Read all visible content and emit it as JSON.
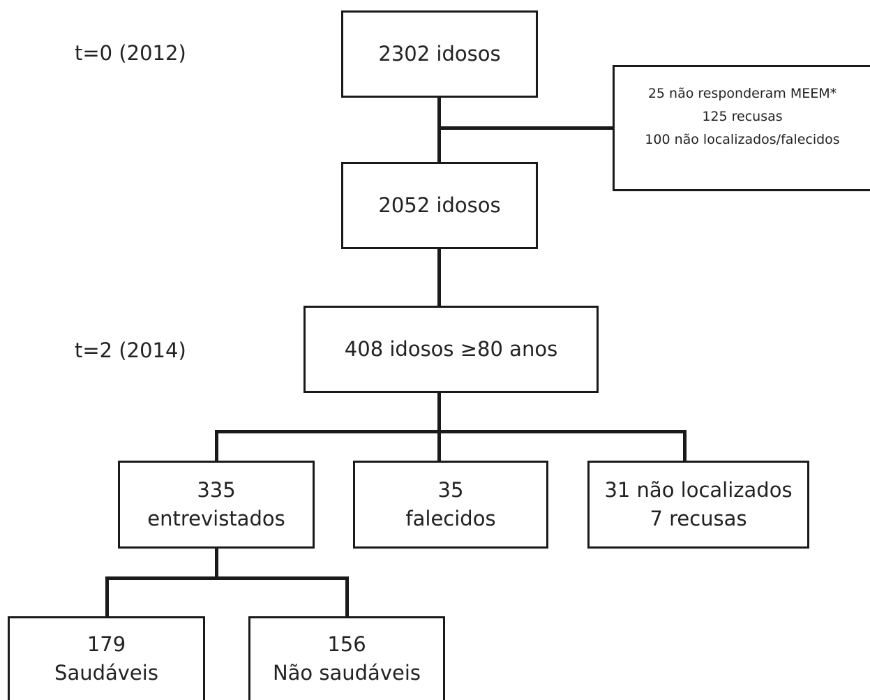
{
  "time_labels": {
    "t0": "t=0 (2012)",
    "t2": "t=2 (2014)"
  },
  "boxes": {
    "baseline": "2302 idosos",
    "exclusions": {
      "line1": "25 não responderam  MEEM*",
      "line2": "125 recusas",
      "line3": "100 não localizados/falecidos"
    },
    "after_exclusion": "2052 idosos",
    "aged_80_plus": "408 idosos ≥80 anos",
    "interviewed": {
      "count": "335",
      "label": "entrevistados"
    },
    "deceased": {
      "count": "35",
      "label": "falecidos"
    },
    "not_found": {
      "line1": "31 não localizados",
      "line2": "7 recusas"
    },
    "healthy": {
      "count": "179",
      "label": "Saudáveis"
    },
    "unhealthy": {
      "count": "156",
      "label": "Não saudáveis"
    }
  }
}
